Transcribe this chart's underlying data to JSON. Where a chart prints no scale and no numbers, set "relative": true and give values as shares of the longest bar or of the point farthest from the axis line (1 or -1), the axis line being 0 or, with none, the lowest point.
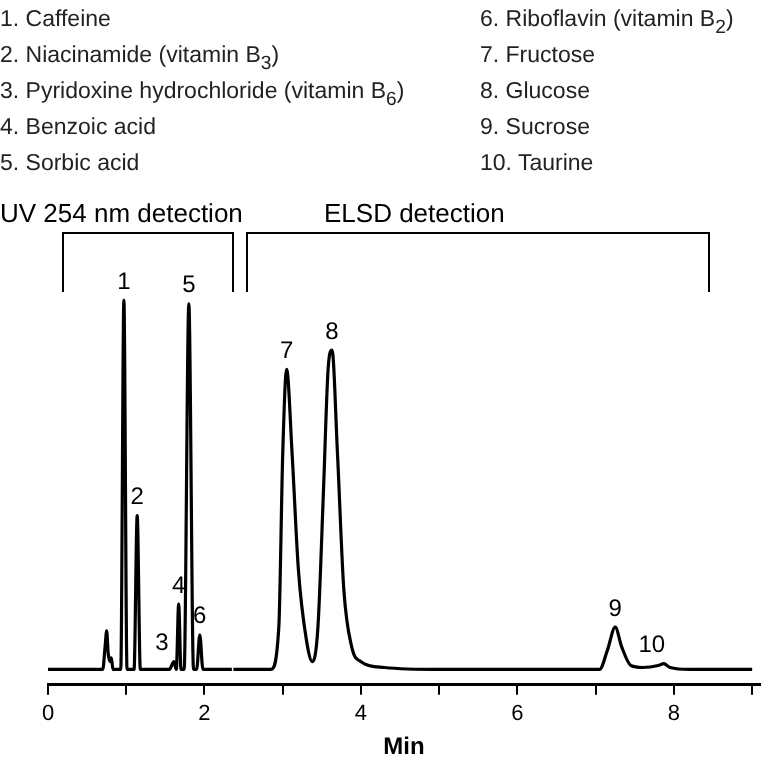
{
  "chart_data": {
    "type": "line",
    "relative": true,
    "xlabel": "Min",
    "xlim": [
      0,
      9.1
    ],
    "xticks": [
      0,
      {
        "value": 1,
        "label": null
      },
      2,
      {
        "value": 3,
        "label": null
      },
      4,
      {
        "value": 5,
        "label": null
      },
      6,
      {
        "value": 7,
        "label": null
      },
      8,
      {
        "value": 9,
        "label": null
      }
    ],
    "grid": false,
    "legend": false,
    "marker": "none",
    "line_style": "solid",
    "series": [
      {
        "color": "#000000",
        "x": [
          0,
          0.7,
          0.73,
          0.75,
          0.77,
          0.8,
          0.81,
          0.83,
          0.93,
          0.97,
          1.01,
          1.1,
          1.14,
          1.18,
          1.55,
          1.61,
          1.64,
          1.67,
          1.7,
          1.74,
          1.8,
          1.86,
          1.9,
          1.94,
          1.98,
          2.35
        ],
        "values": [
          0.04,
          0.04,
          0.1,
          0.14,
          0.08,
          0.06,
          0.07,
          0.04,
          0.04,
          1.0,
          0.04,
          0.04,
          0.44,
          0.04,
          0.04,
          0.06,
          0.04,
          0.21,
          0.04,
          0.04,
          0.99,
          0.04,
          0.04,
          0.13,
          0.04,
          0.04
        ]
      },
      {
        "color": "#000000",
        "x": [
          2.37,
          2.85,
          2.95,
          3.0,
          3.05,
          3.12,
          3.2,
          3.3,
          3.38,
          3.45,
          3.52,
          3.58,
          3.63,
          3.7,
          3.78,
          3.88,
          4.0,
          4.3,
          5.0,
          7.05,
          7.15,
          7.25,
          7.33,
          7.45,
          7.6,
          7.8,
          7.87,
          7.95,
          8.2,
          9.0
        ],
        "values": [
          0.04,
          0.04,
          0.15,
          0.6,
          0.82,
          0.6,
          0.3,
          0.12,
          0.06,
          0.15,
          0.5,
          0.82,
          0.87,
          0.6,
          0.25,
          0.1,
          0.06,
          0.045,
          0.04,
          0.04,
          0.09,
          0.15,
          0.1,
          0.05,
          0.045,
          0.05,
          0.055,
          0.045,
          0.04,
          0.04
        ]
      }
    ],
    "annotations": [
      "1. Caffeine",
      "2. Niacinamide (vitamin B$_{3}$)",
      "3. Pyridoxine hydrochloride (vitamin B$_{6}$)",
      "4. Benzoic acid",
      "5. Sorbic acid",
      "6. Riboflavin (vitamin B$_{2}$)",
      "7. Fructose",
      "8. Glucose",
      "9. Sucrose",
      "10. Taurine",
      "UV 254 nm detection",
      "ELSD detection",
      {
        "text": "1",
        "x": 0.97,
        "y": 1.0
      },
      {
        "text": "2",
        "x": 1.14,
        "y": 0.44
      },
      {
        "text": "3",
        "x": 1.61,
        "y": 0.06
      },
      {
        "text": "4",
        "x": 1.67,
        "y": 0.21
      },
      {
        "text": "5",
        "x": 1.8,
        "y": 0.99
      },
      {
        "text": "6",
        "x": 1.94,
        "y": 0.13
      },
      {
        "text": "7",
        "x": 3.05,
        "y": 0.82
      },
      {
        "text": "8",
        "x": 3.63,
        "y": 0.87
      },
      {
        "text": "9",
        "x": 7.25,
        "y": 0.15
      },
      {
        "text": "10",
        "x": 7.87,
        "y": 0.055
      }
    ]
  }
}
